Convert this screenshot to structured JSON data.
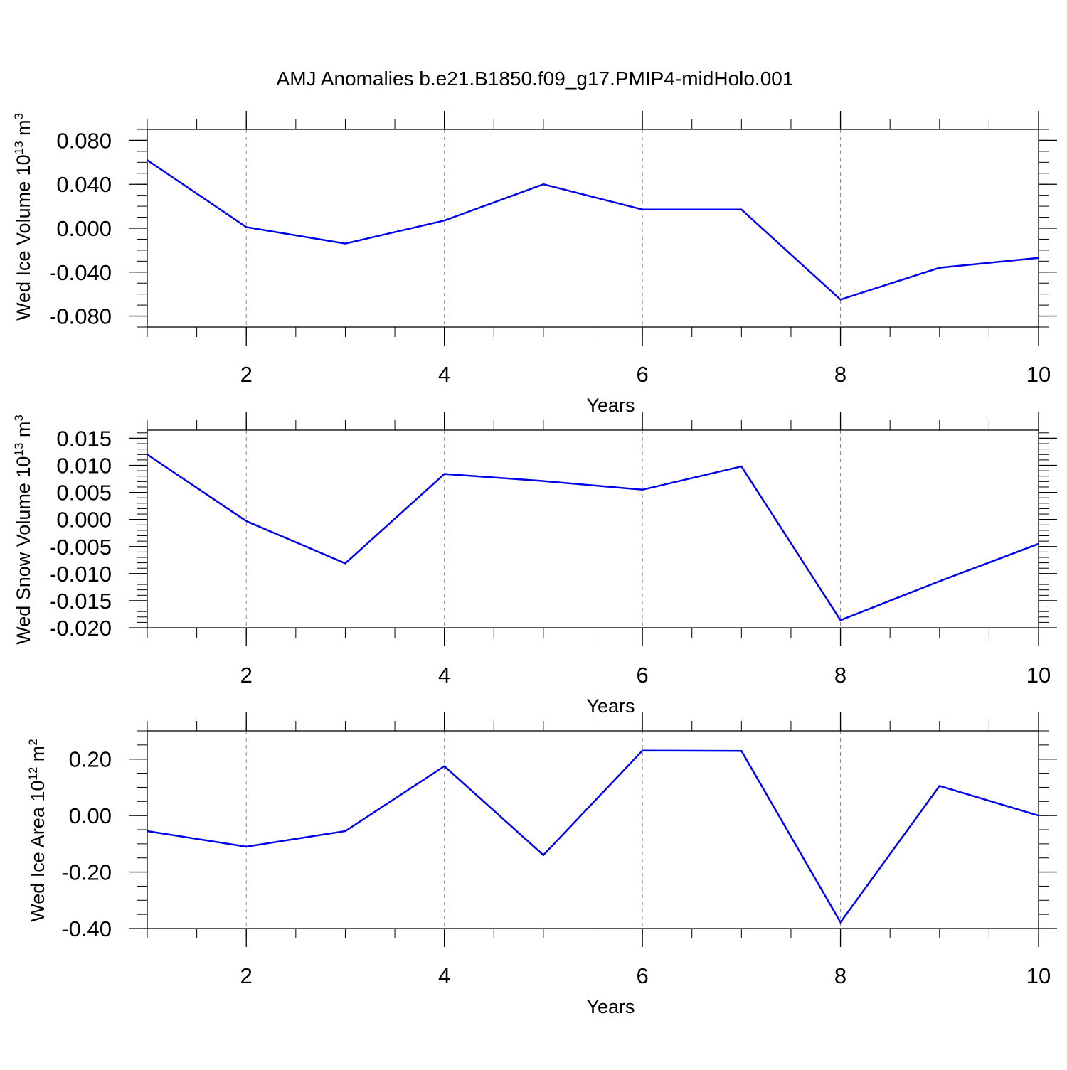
{
  "figure": {
    "title": "AMJ Anomalies b.e21.B1850.f09_g17.PMIP4-midHolo.001"
  },
  "chart_data": [
    {
      "type": "line",
      "title": "AMJ Anomalies b.e21.B1850.f09_g17.PMIP4-midHolo.001",
      "xlabel": "Years",
      "ylabel": "Wed Ice Volume",
      "ylabel_unit_base": "10",
      "ylabel_unit_exp": "13",
      "ylabel_unit_sym": "m",
      "ylabel_unit_pow": "3",
      "xlim": [
        1,
        10
      ],
      "ylim": [
        -0.09,
        0.09
      ],
      "xticks": [
        2,
        4,
        6,
        8,
        10
      ],
      "xtick_labels": [
        "2",
        "4",
        "6",
        "8",
        "10"
      ],
      "xminor_step": 0.5,
      "yticks": [
        -0.08,
        -0.04,
        0.0,
        0.04,
        0.08
      ],
      "ytick_labels": [
        "-0.080",
        "-0.040",
        "0.000",
        "0.040",
        "0.080"
      ],
      "yminor_step": 0.01,
      "grid": "vertical dashed at major x ticks",
      "line_color": "#0000ee",
      "x": [
        1,
        2,
        3,
        4,
        5,
        6,
        7,
        8,
        9,
        10
      ],
      "y": [
        0.062,
        0.001,
        -0.014,
        0.007,
        0.04,
        0.017,
        0.017,
        -0.065,
        -0.036,
        -0.027
      ]
    },
    {
      "type": "line",
      "xlabel": "Years",
      "ylabel": "Wed Snow Volume",
      "ylabel_unit_base": "10",
      "ylabel_unit_exp": "13",
      "ylabel_unit_sym": "m",
      "ylabel_unit_pow": "3",
      "xlim": [
        1,
        10
      ],
      "ylim": [
        -0.02,
        0.0165
      ],
      "xticks": [
        2,
        4,
        6,
        8,
        10
      ],
      "xtick_labels": [
        "2",
        "4",
        "6",
        "8",
        "10"
      ],
      "xminor_step": 0.5,
      "yticks": [
        -0.02,
        -0.015,
        -0.01,
        -0.005,
        0.0,
        0.005,
        0.01,
        0.015
      ],
      "ytick_labels": [
        "-0.020",
        "-0.015",
        "-0.010",
        "-0.005",
        "0.000",
        "0.005",
        "0.010",
        "0.015"
      ],
      "yminor_step": 0.001,
      "grid": "vertical dashed at major x ticks",
      "line_color": "#0000ee",
      "x": [
        1,
        2,
        3,
        4,
        5,
        6,
        7,
        8,
        9,
        10
      ],
      "y": [
        0.012,
        -0.0003,
        -0.0081,
        0.0084,
        0.0071,
        0.0055,
        0.0098,
        -0.0186,
        -0.0114,
        -0.0045
      ]
    },
    {
      "type": "line",
      "xlabel": "Years",
      "ylabel": "Wed Ice Area",
      "ylabel_unit_base": "10",
      "ylabel_unit_exp": "12",
      "ylabel_unit_sym": "m",
      "ylabel_unit_pow": "2",
      "xlim": [
        1,
        10
      ],
      "ylim": [
        -0.4,
        0.3
      ],
      "xticks": [
        2,
        4,
        6,
        8,
        10
      ],
      "xtick_labels": [
        "2",
        "4",
        "6",
        "8",
        "10"
      ],
      "xminor_step": 0.5,
      "yticks": [
        -0.4,
        -0.2,
        0.0,
        0.2
      ],
      "ytick_labels": [
        "-0.40",
        "-0.20",
        "0.00",
        "0.20"
      ],
      "yminor_step": 0.05,
      "grid": "vertical dashed at major x ticks",
      "line_color": "#0000ee",
      "x": [
        1,
        2,
        3,
        4,
        5,
        6,
        7,
        8,
        9,
        10
      ],
      "y": [
        -0.055,
        -0.11,
        -0.055,
        0.175,
        -0.14,
        0.23,
        0.229,
        -0.378,
        0.105,
        0.0
      ]
    }
  ]
}
